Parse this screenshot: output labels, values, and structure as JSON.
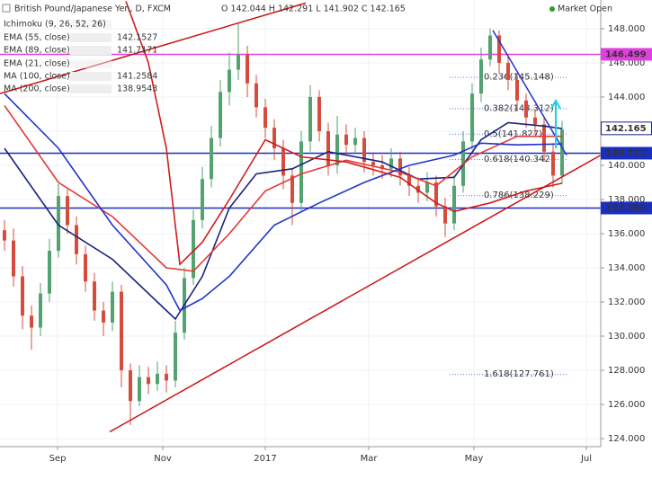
{
  "chart_data": {
    "type": "candlestick",
    "title": "British Pound/Japanese Yen, D, FXCM",
    "quote": "O 142.044 H 142.291 L 141.902 C 142.165",
    "status": "Market Open",
    "hidden_indicators": [
      "Ichimoku (9, 26, 52, 26)",
      "EMA (21, close)"
    ],
    "x": [
      0,
      1,
      2,
      3,
      4,
      5,
      6,
      7,
      8,
      9,
      10,
      11,
      12,
      13,
      14,
      15,
      16,
      17,
      18,
      19,
      20,
      21,
      22,
      23,
      24,
      25,
      26,
      27,
      28,
      29,
      30,
      31,
      32,
      33,
      34,
      35,
      36,
      37,
      38,
      39,
      40,
      41,
      42,
      43,
      44,
      45,
      46,
      47,
      48,
      49,
      50,
      51,
      52,
      53,
      54,
      55,
      56,
      57,
      58,
      59,
      60,
      61,
      62
    ],
    "open": [
      136.2,
      135.6,
      133.5,
      131.2,
      130.5,
      132.5,
      135.0,
      138.2,
      136.5,
      134.8,
      133.2,
      131.5,
      130.8,
      132.6,
      128.0,
      126.2,
      127.6,
      127.2,
      127.8,
      127.4,
      130.2,
      133.4,
      136.8,
      139.2,
      141.6,
      144.3,
      145.6,
      146.5,
      144.8,
      143.4,
      142.2,
      141.0,
      139.4,
      137.8,
      141.4,
      144.0,
      142.0,
      140.0,
      141.8,
      141.2,
      141.6,
      140.2,
      140.0,
      139.8,
      140.4,
      139.4,
      138.8,
      138.4,
      139.0,
      137.6,
      136.6,
      138.8,
      141.4,
      144.2,
      146.2,
      147.6,
      146.0,
      145.0,
      143.8,
      142.8,
      142.4,
      140.8,
      139.4
    ],
    "high": [
      136.8,
      136.3,
      134.1,
      131.8,
      133.1,
      135.7,
      138.9,
      138.6,
      137.0,
      135.3,
      133.7,
      132.0,
      133.2,
      133.0,
      128.4,
      128.3,
      128.2,
      128.5,
      128.3,
      130.9,
      134.0,
      137.4,
      139.9,
      142.3,
      145.0,
      146.6,
      148.3,
      147.0,
      145.3,
      143.9,
      142.7,
      141.5,
      139.8,
      142.0,
      144.7,
      144.4,
      142.5,
      142.9,
      142.4,
      142.2,
      142.0,
      140.7,
      140.6,
      141.0,
      140.8,
      139.9,
      139.3,
      139.6,
      139.4,
      138.1,
      139.4,
      142.0,
      144.8,
      146.9,
      148.0,
      147.9,
      146.5,
      145.4,
      144.2,
      143.3,
      142.8,
      141.3,
      142.6
    ],
    "low": [
      135.0,
      132.9,
      130.4,
      129.2,
      130.0,
      132.0,
      134.6,
      136.0,
      134.2,
      132.6,
      130.9,
      130.0,
      130.3,
      127.0,
      124.8,
      125.9,
      126.6,
      126.8,
      126.7,
      127.0,
      129.8,
      133.0,
      136.3,
      138.7,
      141.1,
      143.5,
      145.0,
      144.0,
      142.8,
      141.6,
      140.3,
      138.6,
      136.5,
      137.3,
      140.8,
      141.4,
      139.4,
      139.5,
      140.6,
      140.7,
      139.6,
      139.4,
      139.2,
      139.3,
      138.8,
      138.2,
      137.8,
      137.9,
      137.0,
      135.8,
      136.2,
      138.4,
      140.9,
      143.7,
      145.8,
      145.4,
      144.4,
      143.2,
      142.2,
      141.8,
      140.2,
      138.7,
      138.9
    ],
    "close": [
      135.6,
      133.5,
      131.2,
      130.5,
      132.5,
      135.0,
      138.2,
      136.5,
      134.8,
      133.2,
      131.5,
      130.8,
      132.6,
      128.0,
      126.2,
      127.6,
      127.2,
      127.8,
      127.4,
      130.2,
      133.4,
      136.8,
      139.2,
      141.6,
      144.3,
      145.6,
      146.5,
      144.8,
      143.4,
      142.2,
      141.0,
      139.4,
      137.8,
      141.4,
      144.0,
      142.0,
      140.0,
      141.8,
      141.2,
      141.6,
      140.2,
      140.0,
      139.8,
      140.4,
      139.4,
      138.8,
      138.4,
      139.0,
      137.6,
      136.6,
      138.8,
      141.4,
      144.2,
      146.2,
      147.6,
      146.0,
      145.0,
      143.8,
      142.8,
      142.4,
      140.8,
      139.4,
      142.1
    ],
    "up_color": "#53a26f",
    "down_color": "#d64c3c",
    "series": [
      {
        "name": "EMA (55, close)",
        "last": 142.1527,
        "color": "#1a237e",
        "x": [
          0,
          6,
          12,
          18,
          19,
          22,
          25,
          28,
          32,
          36,
          42,
          46,
          50,
          53,
          56,
          60,
          62
        ],
        "values": [
          141,
          136.5,
          134.5,
          131.5,
          131.0,
          133.5,
          137.5,
          139.5,
          139.8,
          140.8,
          140.2,
          139.2,
          139.3,
          141.5,
          142.5,
          142.3,
          142.15
        ]
      },
      {
        "name": "EMA (89, close)",
        "last": 141.7171,
        "color": "#e53935",
        "x": [
          0,
          6,
          12,
          18,
          21,
          25,
          29,
          33,
          38,
          44,
          48,
          52,
          57,
          62
        ],
        "values": [
          143.5,
          139,
          137,
          134,
          133.8,
          136,
          138.5,
          139.5,
          140.3,
          139.6,
          138.8,
          140.5,
          141.7,
          141.7
        ]
      },
      {
        "name": "MA (100, close)",
        "last": 141.2584,
        "color": "#2233cc",
        "x": [
          0,
          6,
          12,
          18,
          19.5,
          22,
          25,
          30,
          35,
          40,
          45,
          50,
          53,
          57,
          62
        ],
        "values": [
          144.2,
          141,
          136.5,
          133,
          131.5,
          132.2,
          133.5,
          136.5,
          137.8,
          139,
          140,
          140.6,
          141.3,
          141.2,
          141.25
        ]
      },
      {
        "name": "MA (200, close)",
        "last": 138.9543,
        "color": "#d01c1c",
        "x": [
          13.5,
          16,
          18,
          19.5,
          22,
          25,
          29,
          33,
          38,
          44,
          48,
          50,
          54,
          58,
          62
        ],
        "values": [
          149.6,
          146,
          141,
          134.2,
          135.5,
          138,
          141.5,
          140.5,
          140.2,
          139.3,
          137.8,
          137.3,
          137.8,
          138.5,
          138.95
        ]
      }
    ],
    "trendlines": [
      {
        "color": "#cc1111",
        "x": [
          11.7,
          66.3
        ],
        "values": [
          124.4,
          140.6
        ]
      },
      {
        "color": "#cc1111",
        "x": [
          -0.5,
          33.5
        ],
        "values": [
          144.2,
          149.5
        ]
      },
      {
        "color": "#2233cc",
        "x": [
          54.3,
          62.5
        ],
        "values": [
          147.9,
          140.6
        ]
      }
    ],
    "levels": [
      {
        "value": 146.499,
        "label": "146.499",
        "color": "#e040e0"
      },
      {
        "value": 140.711,
        "label": "140.711",
        "color": "#1a2fc0"
      },
      {
        "value": 137.5,
        "label": "137.500",
        "color": "#1a2fc0"
      }
    ],
    "price": {
      "value": 142.165,
      "label": "142.165"
    },
    "fib": [
      {
        "value": 145.148,
        "label": "0.236(145.148)"
      },
      {
        "value": 143.312,
        "label": "0.382(143.312)"
      },
      {
        "value": 141.827,
        "label": "0.5(141.827)"
      },
      {
        "value": 140.342,
        "label": "0.618(140.342)"
      },
      {
        "value": 138.229,
        "label": "0.786(138.229)"
      },
      {
        "value": 127.761,
        "label": "1.618(127.761)"
      }
    ],
    "xlim": [
      -0.5,
      66.3
    ],
    "xticks": [
      {
        "value": 5.9,
        "label": "Sep"
      },
      {
        "value": 17.6,
        "label": "Nov"
      },
      {
        "value": 29,
        "label": "2017"
      },
      {
        "value": 40.5,
        "label": "Mar"
      },
      {
        "value": 52.2,
        "label": "May"
      },
      {
        "value": 64.7,
        "label": "Jul"
      }
    ],
    "ylim": [
      123.53,
      149.68
    ],
    "yticks": [
      {
        "value": 124,
        "label": "124.000"
      },
      {
        "value": 126,
        "label": "126.000"
      },
      {
        "value": 128,
        "label": "128.000"
      },
      {
        "value": 130,
        "label": "130.000"
      },
      {
        "value": 132,
        "label": "132.000"
      },
      {
        "value": 134,
        "label": "134.000"
      },
      {
        "value": 136,
        "label": "136.000"
      },
      {
        "value": 138,
        "label": "138.000"
      },
      {
        "value": 140,
        "label": "140.000"
      },
      {
        "value": 142,
        "label": "142.000"
      },
      {
        "value": 144,
        "label": "144.000"
      },
      {
        "value": 146,
        "label": "146.000"
      },
      {
        "value": 148,
        "label": "148.000"
      }
    ],
    "grid": true
  }
}
